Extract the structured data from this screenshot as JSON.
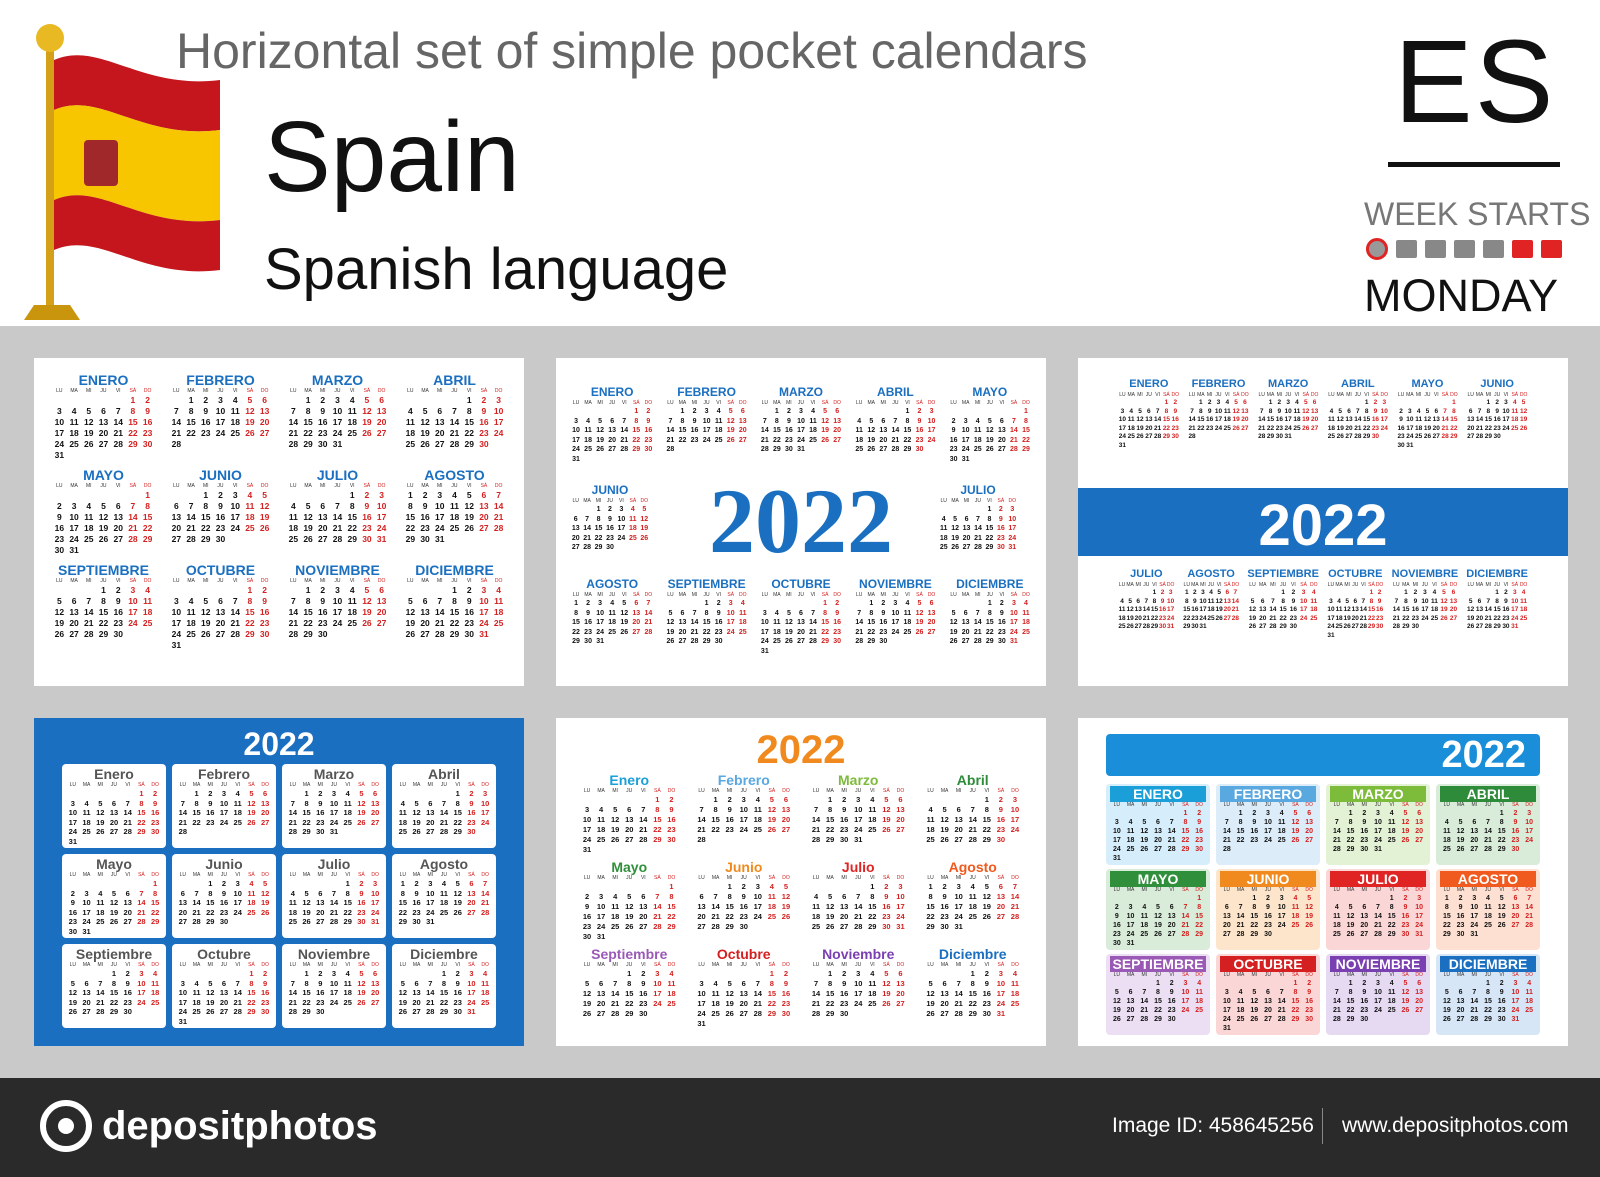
{
  "header": {
    "headline": "Horizontal set of simple pocket calendars",
    "country": "Spain",
    "language": "Spanish language",
    "code": "ES",
    "week_starts_label": "WEEK STARTS",
    "week_start_day": "MONDAY"
  },
  "year": "2022",
  "day_headers": [
    "LU",
    "MA",
    "MI",
    "JU",
    "VI",
    "SÁ",
    "DO"
  ],
  "months_upper": [
    "ENERO",
    "FEBRERO",
    "MARZO",
    "ABRIL",
    "MAYO",
    "JUNIO",
    "JULIO",
    "AGOSTO",
    "SEPTIEMBRE",
    "OCTUBRE",
    "NOVIEMBRE",
    "DICIEMBRE"
  ],
  "months_title": [
    "Enero",
    "Febrero",
    "Marzo",
    "Abril",
    "Mayo",
    "Junio",
    "Julio",
    "Agosto",
    "Septiembre",
    "Octubre",
    "Noviembre",
    "Diciembre"
  ],
  "colors": {
    "blue": "#1a6fc0",
    "red": "#d42020",
    "rainbow": [
      "#1a9fd8",
      "#5aa8e0",
      "#7dbb3a",
      "#2e8b3a",
      "#2f8f3a",
      "#f08a1e",
      "#e02424",
      "#f05a1e",
      "#9b59b6",
      "#d42020",
      "#7a3fb0",
      "#1a6fc0"
    ]
  },
  "footer": {
    "brand": "depositphotos",
    "image_id": "Image ID: 458645256",
    "site": "www.depositphotos.com"
  }
}
